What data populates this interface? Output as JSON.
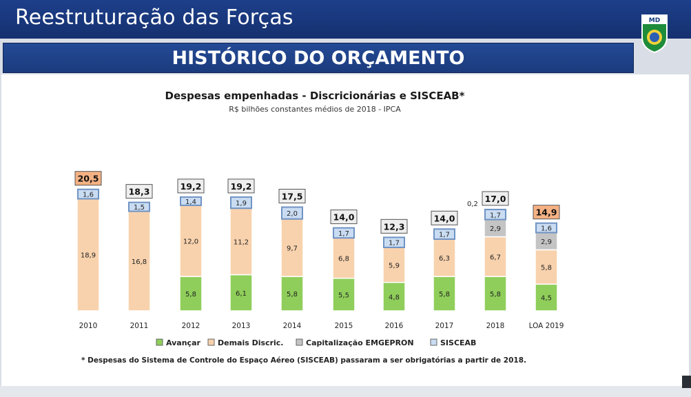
{
  "header": {
    "title": "Reestruturação das Forças",
    "logo_text": "MD"
  },
  "section": {
    "title": "HISTÓRICO DO ORÇAMENTO"
  },
  "colors": {
    "avancar": "#8fce5a",
    "demais": "#f8d2ad",
    "capitalizacao": "#c4c4c4",
    "sisceab": "#c9dcf2",
    "total_highlight": "#f4b183",
    "total_box": "#eeeeee"
  },
  "chart_data": {
    "type": "bar",
    "stacked": true,
    "title": "Despesas empenhadas - Discricionárias e SISCEAB*",
    "subtitle": "R$ bilhões constantes médios de 2018 - IPCA",
    "categories": [
      "2010",
      "2011",
      "2012",
      "2013",
      "2014",
      "2015",
      "2016",
      "2017",
      "2018",
      "LOA 2019"
    ],
    "series": [
      {
        "name": "Avançar",
        "color_key": "avancar",
        "values": [
          null,
          null,
          5.8,
          6.1,
          5.8,
          5.5,
          4.8,
          5.8,
          5.8,
          4.5
        ],
        "labels": [
          "",
          "",
          "5,8",
          "6,1",
          "5,8",
          "5,5",
          "4,8",
          "5,8",
          "5,8",
          "4,5"
        ]
      },
      {
        "name": "Demais Discric.",
        "color_key": "demais",
        "values": [
          18.9,
          16.8,
          12.0,
          11.2,
          9.7,
          6.8,
          5.9,
          6.3,
          6.7,
          5.8
        ],
        "labels": [
          "18,9",
          "16,8",
          "12,0",
          "11,2",
          "9,7",
          "6,8",
          "5,9",
          "6,3",
          "6,7",
          "5,8"
        ]
      },
      {
        "name": "Capitalização EMGEPRON",
        "color_key": "capitalizacao",
        "values": [
          null,
          null,
          null,
          null,
          null,
          null,
          null,
          0.2,
          2.9,
          2.9
        ],
        "labels": [
          "",
          "",
          "",
          "",
          "",
          "",
          "",
          "",
          "2,9",
          "2,9"
        ]
      },
      {
        "name": "SISCEAB",
        "color_key": "sisceab",
        "values": [
          1.6,
          1.5,
          1.4,
          1.9,
          2.0,
          1.7,
          1.7,
          1.7,
          1.7,
          1.6
        ],
        "labels": [
          "1,6",
          "1,5",
          "1,4",
          "1,9",
          "2,0",
          "1,7",
          "1,7",
          "1,7",
          "1,7",
          "1,6"
        ]
      }
    ],
    "totals": [
      20.5,
      18.3,
      19.2,
      19.2,
      17.5,
      14.0,
      12.3,
      14.0,
      17.0,
      14.9
    ],
    "total_labels": [
      "20,5",
      "18,3",
      "19,2",
      "19,2",
      "17,5",
      "14,0",
      "12,3",
      "14,0",
      "17,0",
      "14,9"
    ],
    "highlighted_totals": [
      0,
      9
    ],
    "annotations": [
      {
        "category_index": 7,
        "text": "0,2"
      }
    ],
    "ylim": [
      0,
      22
    ],
    "grid": false,
    "legend_position": "bottom",
    "footnote": "* Despesas do Sistema de Controle do Espaço Aéreo (SISCEAB) passaram a ser obrigatórias a partir de 2018."
  }
}
